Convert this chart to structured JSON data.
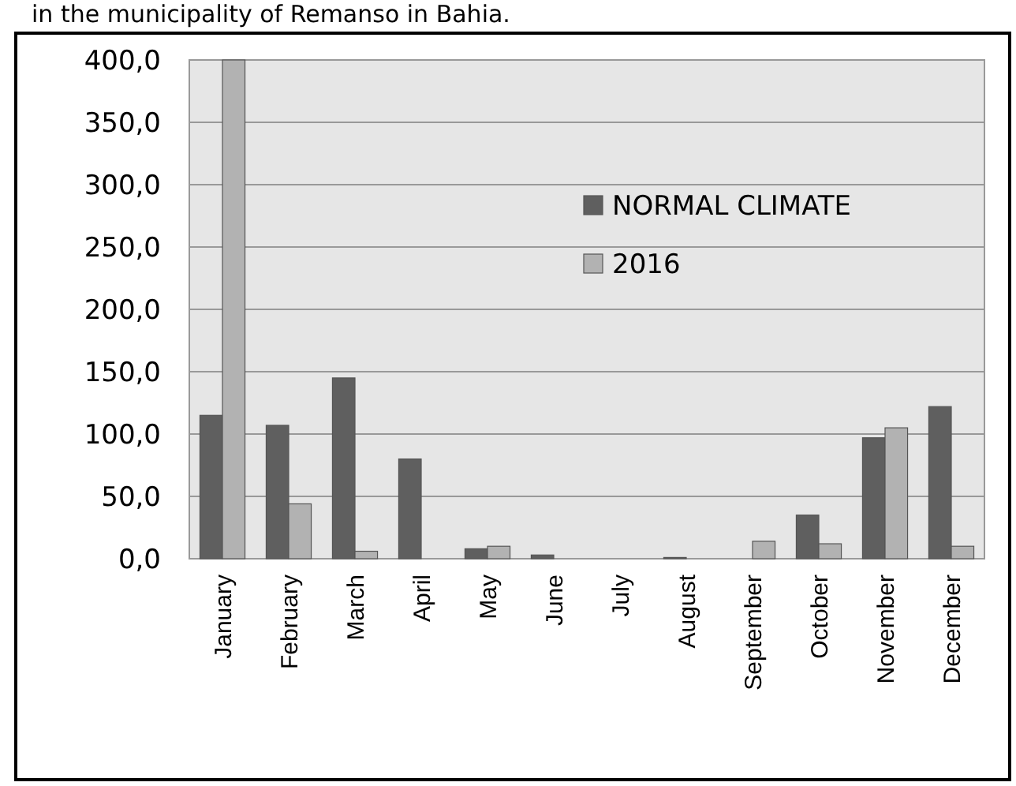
{
  "chart_data": {
    "type": "bar",
    "title": "in the municipality of Remanso in Bahia.",
    "categories": [
      "January",
      "February",
      "March",
      "April",
      "May",
      "June",
      "July",
      "August",
      "September",
      "October",
      "November",
      "December"
    ],
    "series": [
      {
        "name": "NORMAL CLIMATE",
        "color": "#5f5f5f",
        "values": [
          115,
          107,
          145,
          80,
          8,
          3,
          0,
          1,
          0,
          35,
          97,
          122
        ]
      },
      {
        "name": "2016",
        "color": "#b2b2b2",
        "values": [
          400,
          44,
          6,
          0,
          10,
          0,
          0,
          0,
          14,
          12,
          105,
          10
        ]
      }
    ],
    "ylim": [
      0,
      400
    ],
    "yticks": [
      {
        "value": 0,
        "label": "0,0"
      },
      {
        "value": 50,
        "label": "50,0"
      },
      {
        "value": 100,
        "label": "100,0"
      },
      {
        "value": 150,
        "label": "150,0"
      },
      {
        "value": 200,
        "label": "200,0"
      },
      {
        "value": 250,
        "label": "250,0"
      },
      {
        "value": 300,
        "label": "300,0"
      },
      {
        "value": 350,
        "label": "350,0"
      },
      {
        "value": 400,
        "label": "400,0"
      }
    ],
    "grid": "y",
    "legend": "top right"
  }
}
